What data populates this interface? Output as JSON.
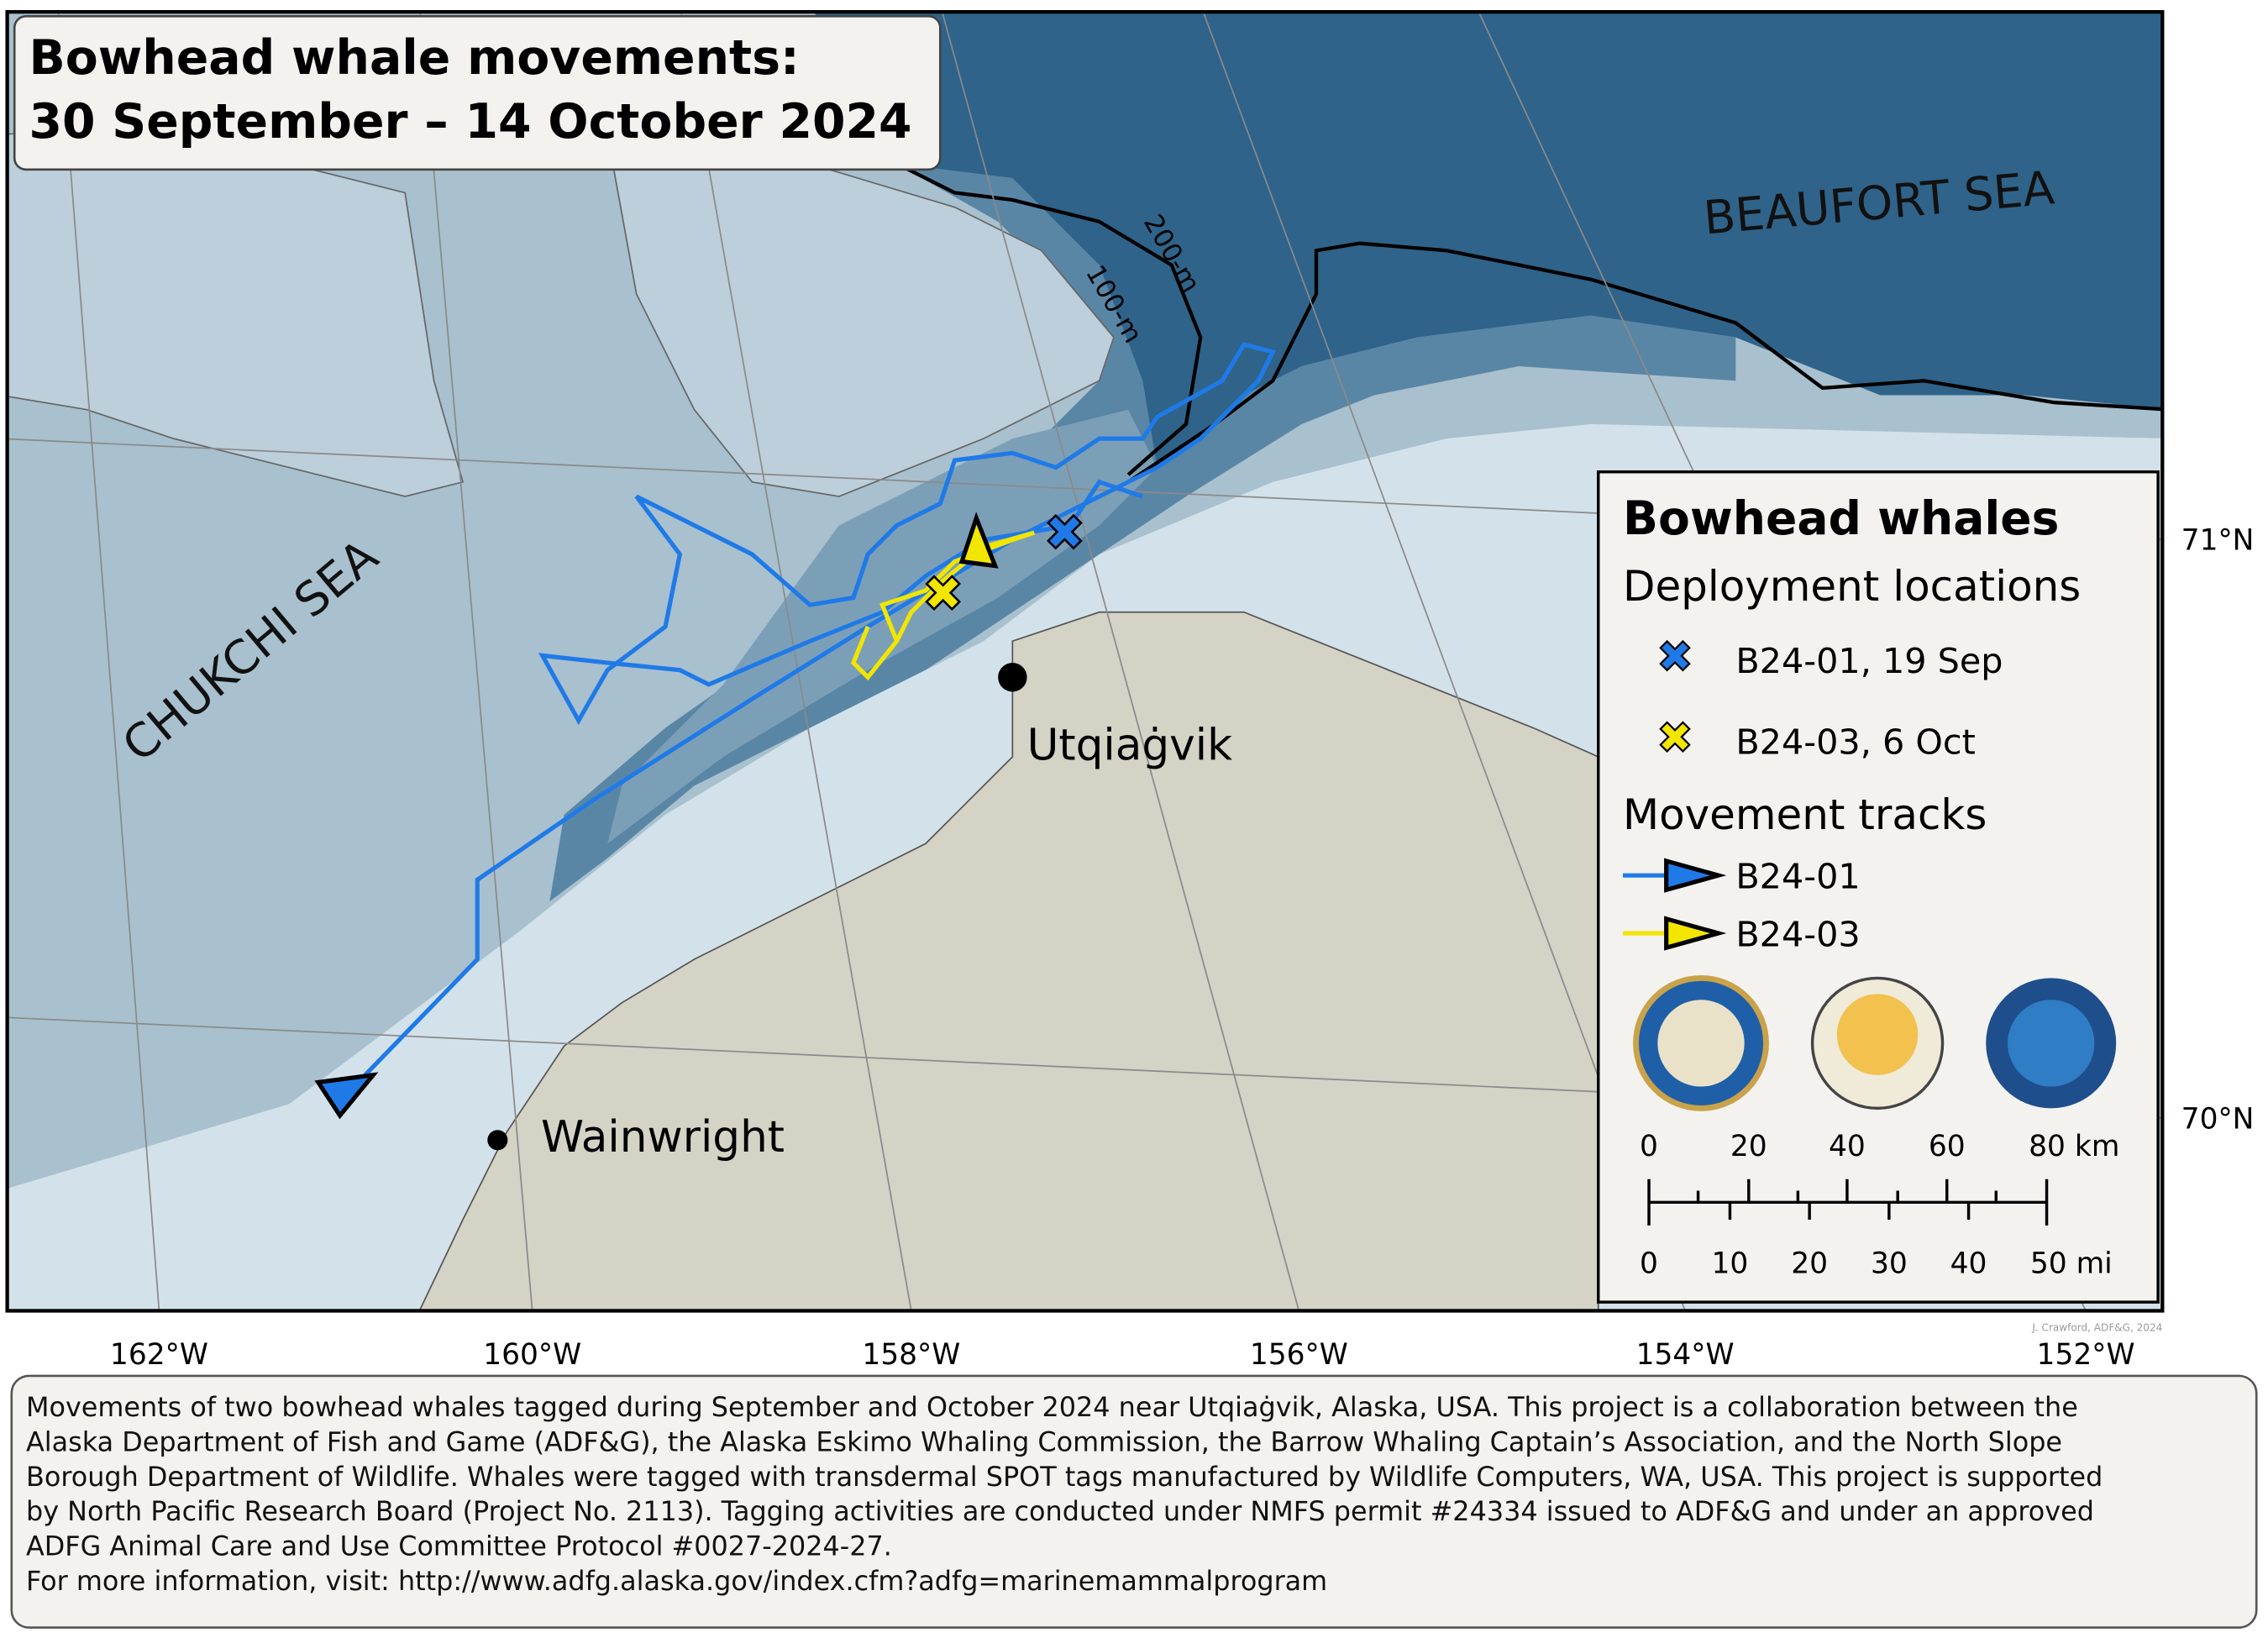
{
  "title": [
    "Bowhead whale movements:",
    "30 September – 14 October 2024"
  ],
  "map": {
    "seas": [
      "BEAUFORT SEA",
      "CHUKCHI SEA"
    ],
    "contours": [
      "200-m",
      "100-m"
    ],
    "places": [
      "Utqiaġvik",
      "Wainwright"
    ],
    "longitudes": [
      "162°W",
      "160°W",
      "158°W",
      "156°W",
      "154°W",
      "152°W"
    ],
    "latitudes": [
      "71°N",
      "70°N"
    ],
    "credit": "J. Crawford, ADF&G, 2024"
  },
  "legend": {
    "title": "Bowhead whales",
    "deployment_heading": "Deployment locations",
    "deployments": [
      "B24-01, 19 Sep",
      "B24-03, 6 Oct"
    ],
    "tracks_heading": "Movement tracks",
    "tracks": [
      "B24-01",
      "B24-03"
    ],
    "scale_km": [
      "0",
      "20",
      "40",
      "60",
      "80 km"
    ],
    "scale_mi": [
      "0",
      "10",
      "20",
      "30",
      "40",
      "50 mi"
    ]
  },
  "caption": [
    "Movements of two bowhead whales tagged during September and October 2024 near Utqiaġvik, Alaska, USA. This project is a collaboration between the",
    "Alaska Department of Fish and Game (ADF&G), the Alaska Eskimo Whaling Commission, the Barrow Whaling Captain’s Association, and the North Slope",
    "Borough Department of Wildlife. Whales were tagged with transdermal SPOT tags manufactured by Wildlife Computers, WA, USA. This project is supported",
    "by North Pacific Research Board (Project No. 2113). Tagging activities are conducted under NMFS permit #24334 issued to ADF&G and under an approved",
    "ADFG Animal Care and Use Committee Protocol #0027-2024-27.",
    "For more information, visit: http://www.adfg.alaska.gov/index.cfm?adfg=marinemammalprogram"
  ]
}
